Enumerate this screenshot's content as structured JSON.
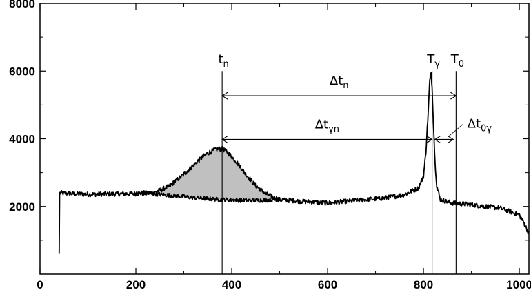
{
  "chart_data": {
    "type": "line",
    "xlim": [
      0,
      1020
    ],
    "ylim": [
      0,
      8000
    ],
    "x_ticks": [
      0,
      200,
      400,
      600,
      800,
      1000
    ],
    "y_ticks": [
      2000,
      4000,
      6000,
      8000
    ],
    "grid": false,
    "series": [
      {
        "style": "upper trace (with neutron bump)",
        "x": [
          40,
          41,
          60,
          100,
          150,
          200,
          240,
          270,
          300,
          330,
          350,
          370,
          380,
          390,
          410,
          430,
          450,
          470,
          490,
          500,
          520,
          560,
          600,
          640,
          680,
          720,
          760,
          790,
          800,
          805,
          810,
          813,
          816,
          818,
          821,
          824,
          828,
          835,
          860,
          900,
          960,
          1000,
          1010,
          1020
        ],
        "y": [
          600,
          2400,
          2380,
          2360,
          2370,
          2380,
          2420,
          2600,
          2950,
          3350,
          3580,
          3700,
          3700,
          3620,
          3320,
          2940,
          2620,
          2380,
          2250,
          2200,
          2180,
          2140,
          2100,
          2150,
          2200,
          2250,
          2350,
          2550,
          2900,
          3600,
          4800,
          5700,
          5950,
          5500,
          4400,
          3300,
          2600,
          2200,
          2100,
          2050,
          1950,
          1750,
          1500,
          1200
        ]
      },
      {
        "style": "background baseline (under bump)",
        "x": [
          200,
          240,
          280,
          320,
          360,
          380,
          420,
          460,
          500
        ],
        "y": [
          2400,
          2370,
          2320,
          2260,
          2220,
          2200,
          2180,
          2180,
          2200
        ]
      }
    ],
    "shaded_region": {
      "x_range": [
        240,
        500
      ],
      "fill": "#c0c0c0"
    },
    "vertical_lines": [
      380,
      818,
      868
    ],
    "annotations": [
      {
        "label": "t",
        "sub": "n",
        "x": 380
      },
      {
        "label": "T",
        "sub": "γ",
        "x": 818
      },
      {
        "label": "T",
        "sub": "0",
        "x": 868
      },
      {
        "label": "Δt",
        "sub": "n",
        "from": 380,
        "to": 868,
        "y": 5270
      },
      {
        "label": "Δt",
        "sub": "γn",
        "from": 380,
        "to": 818,
        "y": 3980
      },
      {
        "label": "Δt",
        "sub": "0γ",
        "from": 818,
        "to": 868,
        "y": 3980
      }
    ],
    "colors": {
      "line": "#000000",
      "fill": "#c0c0c0",
      "background": "#ffffff"
    }
  }
}
